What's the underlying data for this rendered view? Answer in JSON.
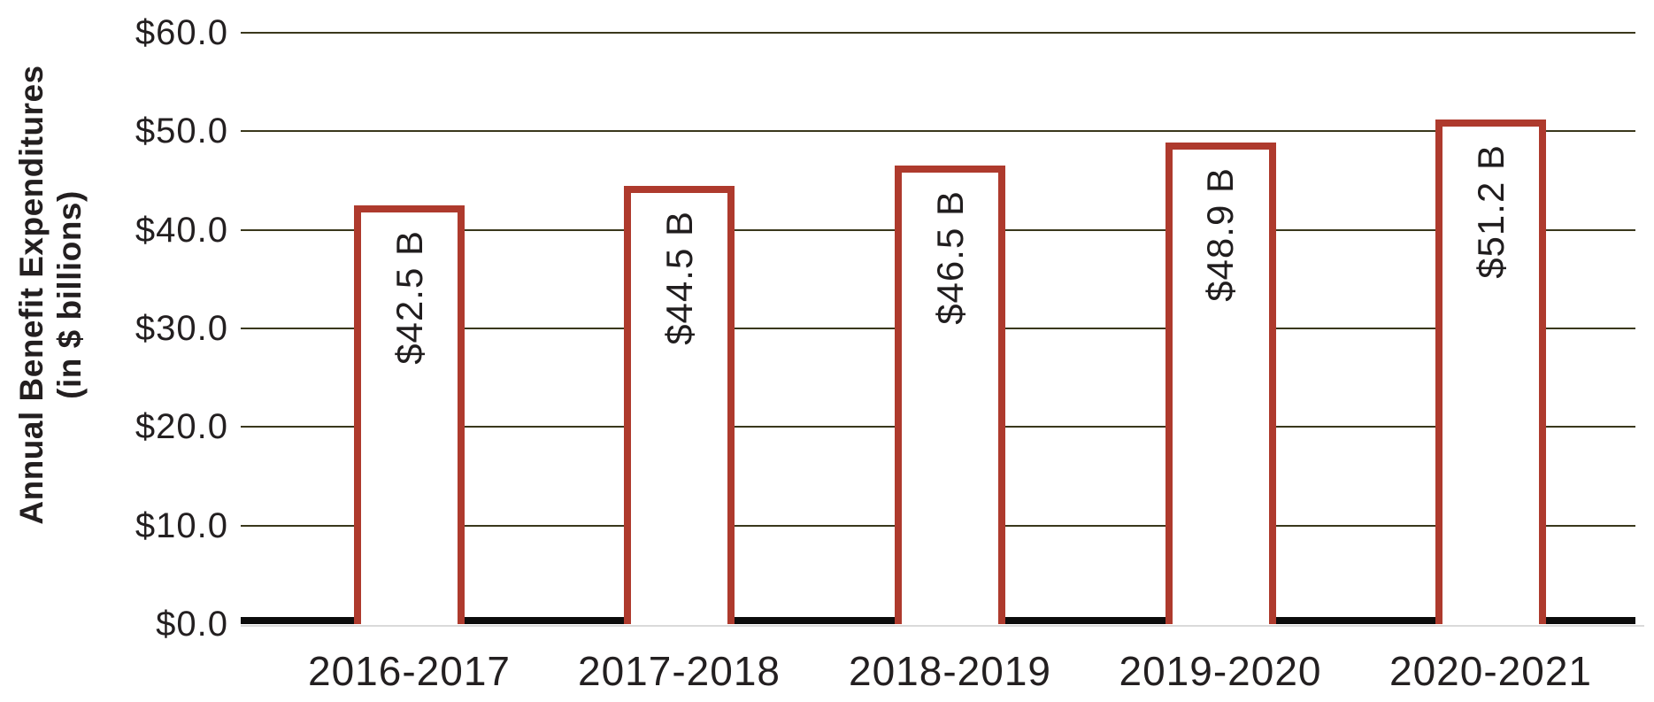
{
  "chart_data": {
    "type": "bar",
    "title": "",
    "categories": [
      "2016-2017",
      "2017-2018",
      "2018-2019",
      "2019-2020",
      "2020-2021"
    ],
    "values": [
      42.5,
      44.5,
      46.5,
      48.9,
      51.2
    ],
    "bar_labels": [
      "$42.5 B",
      "$44.5 B",
      "$46.5 B",
      "$48.9 B",
      "$51.2 B"
    ],
    "ylabel_line1": "Annual Benefit Expenditures",
    "ylabel_line2": "(in $ billions)",
    "xlabel": "",
    "ytick_values": [
      0,
      10,
      20,
      30,
      40,
      50,
      60
    ],
    "ytick_labels": [
      "$0.0",
      "$10.0",
      "$20.0",
      "$30.0",
      "$40.0",
      "$50.0",
      "$60.0"
    ],
    "ylim": [
      0,
      60
    ],
    "grid": true,
    "legend_position": "none",
    "colors": {
      "bar_fill": "#ffffff",
      "bar_border": "#ae3a2d",
      "gridline": "#3a381c",
      "zero_line": "#0c0c0c",
      "baseline_light": "#dadada",
      "text": "#231f20"
    }
  }
}
